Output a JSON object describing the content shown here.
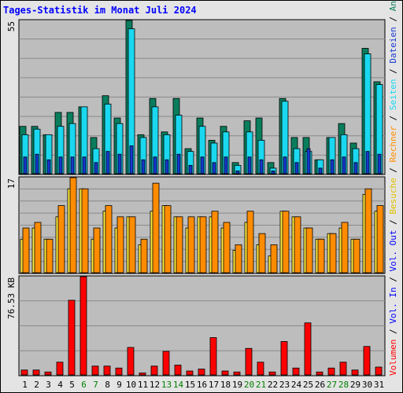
{
  "title": "Tages-Statistik im Monat Juli 2024",
  "chart_data": [
    {
      "type": "bar",
      "panel": "top",
      "ylim": [
        0,
        55
      ],
      "ymax_label": "55",
      "categories": [
        "1",
        "2",
        "3",
        "4",
        "5",
        "6",
        "7",
        "8",
        "9",
        "10",
        "11",
        "12",
        "13",
        "14",
        "15",
        "16",
        "17",
        "18",
        "19",
        "20",
        "21",
        "22",
        "23",
        "24",
        "25",
        "26",
        "27",
        "28",
        "29",
        "30",
        "31"
      ],
      "series": [
        {
          "name": "Anfragen",
          "color": "#0a7d5d",
          "values": [
            17,
            17,
            14,
            22,
            22,
            24,
            13,
            28,
            20,
            55,
            14,
            27,
            15,
            27,
            9,
            20,
            12,
            17,
            4,
            19,
            20,
            4,
            27,
            13,
            13,
            5,
            13,
            18,
            11,
            45,
            33
          ]
        },
        {
          "name": "Dateien",
          "color": "#1ad8ef",
          "values": [
            14,
            16,
            14,
            17,
            18,
            24,
            9,
            25,
            18,
            52,
            13,
            24,
            14,
            21,
            8,
            17,
            11,
            15,
            3,
            15,
            12,
            2,
            26,
            9,
            8,
            5,
            13,
            14,
            9,
            43,
            32
          ]
        },
        {
          "name": "Seiten",
          "color": "#1438d0",
          "values": [
            6,
            7,
            5,
            6,
            6,
            6,
            4,
            8,
            7,
            10,
            5,
            6,
            5,
            7,
            3,
            6,
            4,
            6,
            1,
            6,
            5,
            1,
            6,
            4,
            9,
            2,
            5,
            6,
            4,
            8,
            7
          ]
        }
      ]
    },
    {
      "type": "bar",
      "panel": "middle",
      "ylim": [
        0,
        17
      ],
      "ymax_label": "17",
      "categories": [
        "1",
        "2",
        "3",
        "4",
        "5",
        "6",
        "7",
        "8",
        "9",
        "10",
        "11",
        "12",
        "13",
        "14",
        "15",
        "16",
        "17",
        "18",
        "19",
        "20",
        "21",
        "22",
        "23",
        "24",
        "25",
        "26",
        "27",
        "28",
        "29",
        "30",
        "31"
      ],
      "series": [
        {
          "name": "Besuche",
          "color": "#ffeb3b",
          "values": [
            6,
            8,
            6,
            10,
            15,
            15,
            6,
            11,
            8,
            10,
            5,
            11,
            12,
            10,
            8,
            10,
            10,
            8,
            4,
            9,
            5,
            3,
            11,
            10,
            8,
            6,
            7,
            8,
            6,
            14,
            11
          ]
        },
        {
          "name": "Rechner",
          "color": "#ff8c00",
          "values": [
            8,
            9,
            6,
            12,
            17,
            15,
            8,
            12,
            10,
            10,
            6,
            16,
            12,
            10,
            10,
            10,
            11,
            9,
            5,
            11,
            7,
            5,
            11,
            10,
            8,
            6,
            7,
            9,
            6,
            15,
            12
          ]
        }
      ]
    },
    {
      "type": "bar",
      "panel": "bottom",
      "ymax_label": "76.53 KB",
      "categories": [
        "1",
        "2",
        "3",
        "4",
        "5",
        "6",
        "7",
        "8",
        "9",
        "10",
        "11",
        "12",
        "13",
        "14",
        "15",
        "16",
        "17",
        "18",
        "19",
        "20",
        "21",
        "22",
        "23",
        "24",
        "25",
        "26",
        "27",
        "28",
        "29",
        "30",
        "31"
      ],
      "series": [
        {
          "name": "Vol. Out",
          "color": "#0000ff",
          "values": [
            0,
            0,
            0,
            0,
            0,
            0,
            0,
            0,
            0,
            0,
            0,
            0,
            0,
            0,
            0,
            0,
            0,
            0,
            0,
            0,
            0,
            0,
            0,
            0,
            0,
            0,
            0,
            0,
            0,
            0,
            0
          ]
        },
        {
          "name": "Vol. In",
          "color": "#0000ff",
          "values": [
            0,
            0,
            0,
            0,
            0,
            0,
            0,
            0,
            0,
            0,
            0,
            0,
            0,
            0,
            0,
            0,
            0,
            0,
            0,
            0,
            0,
            0,
            0,
            0,
            0,
            0,
            0,
            0,
            0,
            0,
            0
          ]
        },
        {
          "name": "Volumen",
          "color": "#ff0000",
          "values": [
            0.05,
            0.05,
            0.03,
            0.13,
            0.76,
            1.0,
            0.09,
            0.09,
            0.07,
            0.28,
            0.02,
            0.09,
            0.24,
            0.1,
            0.04,
            0.06,
            0.38,
            0.04,
            0.03,
            0.27,
            0.13,
            0.03,
            0.34,
            0.07,
            0.53,
            0.03,
            0.07,
            0.13,
            0.05,
            0.29,
            0.08
          ]
        }
      ]
    }
  ],
  "weekend_days": [
    "6",
    "7",
    "13",
    "14",
    "20",
    "21",
    "27",
    "28"
  ],
  "right_legend": [
    {
      "label": "Volumen",
      "color": "#ff0000"
    },
    {
      "label": " / ",
      "color": "#000000"
    },
    {
      "label": "Vol. In",
      "color": "#0000ff"
    },
    {
      "label": " / ",
      "color": "#000000"
    },
    {
      "label": "Vol. Out",
      "color": "#0000ff"
    },
    {
      "label": " / ",
      "color": "#000000"
    },
    {
      "label": "Besuche",
      "color": "#e0c000"
    },
    {
      "label": " / ",
      "color": "#000000"
    },
    {
      "label": "Rechner",
      "color": "#ff8c00"
    },
    {
      "label": " / ",
      "color": "#000000"
    },
    {
      "label": "Seiten",
      "color": "#1ad8ef"
    },
    {
      "label": " / ",
      "color": "#000000"
    },
    {
      "label": "Dateien",
      "color": "#1438d0"
    },
    {
      "label": " / ",
      "color": "#000000"
    },
    {
      "label": "Anfragen",
      "color": "#0a7d5d"
    }
  ],
  "colors": {
    "plot_bg": "#bdbdbd",
    "frame_bg": "#e4e4e4",
    "grid": "#8a8a8a",
    "weekend_label": "#008000",
    "weekday_label": "#000000"
  }
}
